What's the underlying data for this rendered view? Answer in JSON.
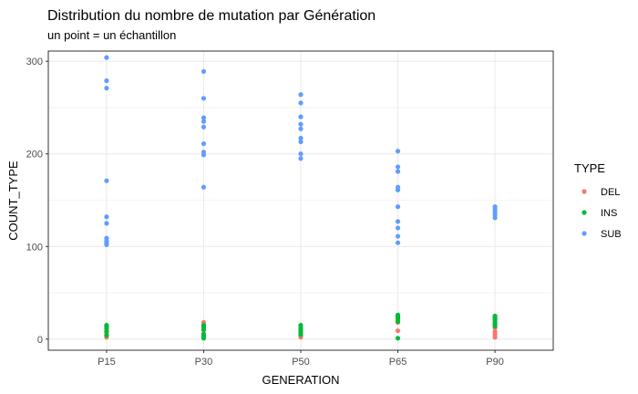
{
  "chart_data": {
    "type": "scatter",
    "title": "Distribution du nombre de mutation par Génération",
    "subtitle": "un point = un échantillon",
    "xlabel": "GENERATION",
    "ylabel": "COUNT_TYPE",
    "categories": [
      "P15",
      "P30",
      "P50",
      "P65",
      "P90"
    ],
    "ylim": [
      -12,
      311
    ],
    "yticks": [
      0,
      100,
      200,
      300
    ],
    "grid": true,
    "legend": {
      "title": "TYPE",
      "position": "right"
    },
    "series": [
      {
        "name": "DEL",
        "color": "#f8766d",
        "points": [
          {
            "x": "P15",
            "y": 2
          },
          {
            "x": "P15",
            "y": 5
          },
          {
            "x": "P15",
            "y": 8
          },
          {
            "x": "P15",
            "y": 10
          },
          {
            "x": "P30",
            "y": 6
          },
          {
            "x": "P30",
            "y": 12
          },
          {
            "x": "P30",
            "y": 15
          },
          {
            "x": "P30",
            "y": 18
          },
          {
            "x": "P50",
            "y": 2
          },
          {
            "x": "P50",
            "y": 4
          },
          {
            "x": "P50",
            "y": 6
          },
          {
            "x": "P65",
            "y": 9
          },
          {
            "x": "P65",
            "y": 18
          },
          {
            "x": "P65",
            "y": 20
          },
          {
            "x": "P90",
            "y": 2
          },
          {
            "x": "P90",
            "y": 5
          },
          {
            "x": "P90",
            "y": 8
          },
          {
            "x": "P90",
            "y": 12
          },
          {
            "x": "P90",
            "y": 20
          }
        ]
      },
      {
        "name": "INS",
        "color": "#00ba38",
        "points": [
          {
            "x": "P15",
            "y": 4
          },
          {
            "x": "P15",
            "y": 8
          },
          {
            "x": "P15",
            "y": 12
          },
          {
            "x": "P15",
            "y": 14
          },
          {
            "x": "P15",
            "y": 15
          },
          {
            "x": "P30",
            "y": 1
          },
          {
            "x": "P30",
            "y": 3
          },
          {
            "x": "P30",
            "y": 5
          },
          {
            "x": "P30",
            "y": 10
          },
          {
            "x": "P30",
            "y": 13
          },
          {
            "x": "P30",
            "y": 15
          },
          {
            "x": "P50",
            "y": 5
          },
          {
            "x": "P50",
            "y": 8
          },
          {
            "x": "P50",
            "y": 10
          },
          {
            "x": "P50",
            "y": 12
          },
          {
            "x": "P50",
            "y": 15
          },
          {
            "x": "P65",
            "y": 1
          },
          {
            "x": "P65",
            "y": 19
          },
          {
            "x": "P65",
            "y": 22
          },
          {
            "x": "P65",
            "y": 24
          },
          {
            "x": "P65",
            "y": 26
          },
          {
            "x": "P90",
            "y": 14
          },
          {
            "x": "P90",
            "y": 16
          },
          {
            "x": "P90",
            "y": 18
          },
          {
            "x": "P90",
            "y": 21
          },
          {
            "x": "P90",
            "y": 23
          },
          {
            "x": "P90",
            "y": 25
          }
        ]
      },
      {
        "name": "SUB",
        "color": "#619cff",
        "points": [
          {
            "x": "P15",
            "y": 304
          },
          {
            "x": "P15",
            "y": 279
          },
          {
            "x": "P15",
            "y": 271
          },
          {
            "x": "P15",
            "y": 171
          },
          {
            "x": "P15",
            "y": 132
          },
          {
            "x": "P15",
            "y": 125
          },
          {
            "x": "P15",
            "y": 109
          },
          {
            "x": "P15",
            "y": 106
          },
          {
            "x": "P15",
            "y": 104
          },
          {
            "x": "P15",
            "y": 102
          },
          {
            "x": "P30",
            "y": 289
          },
          {
            "x": "P30",
            "y": 260
          },
          {
            "x": "P30",
            "y": 239
          },
          {
            "x": "P30",
            "y": 235
          },
          {
            "x": "P30",
            "y": 229
          },
          {
            "x": "P30",
            "y": 211
          },
          {
            "x": "P30",
            "y": 202
          },
          {
            "x": "P30",
            "y": 199
          },
          {
            "x": "P30",
            "y": 164
          },
          {
            "x": "P50",
            "y": 264
          },
          {
            "x": "P50",
            "y": 255
          },
          {
            "x": "P50",
            "y": 240
          },
          {
            "x": "P50",
            "y": 232
          },
          {
            "x": "P50",
            "y": 227
          },
          {
            "x": "P50",
            "y": 217
          },
          {
            "x": "P50",
            "y": 213
          },
          {
            "x": "P50",
            "y": 200
          },
          {
            "x": "P50",
            "y": 195
          },
          {
            "x": "P65",
            "y": 203
          },
          {
            "x": "P65",
            "y": 186
          },
          {
            "x": "P65",
            "y": 181
          },
          {
            "x": "P65",
            "y": 164
          },
          {
            "x": "P65",
            "y": 161
          },
          {
            "x": "P65",
            "y": 143
          },
          {
            "x": "P65",
            "y": 127
          },
          {
            "x": "P65",
            "y": 120
          },
          {
            "x": "P65",
            "y": 111
          },
          {
            "x": "P65",
            "y": 104
          },
          {
            "x": "P90",
            "y": 143
          },
          {
            "x": "P90",
            "y": 140
          },
          {
            "x": "P90",
            "y": 137
          },
          {
            "x": "P90",
            "y": 134
          },
          {
            "x": "P90",
            "y": 131
          }
        ]
      }
    ]
  }
}
